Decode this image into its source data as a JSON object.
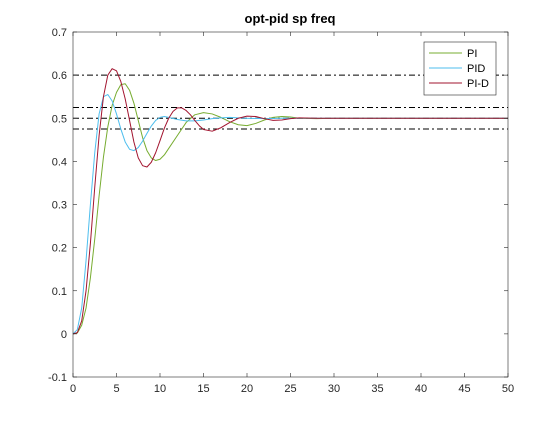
{
  "chart_data": {
    "type": "line",
    "title": "opt-pid sp freq",
    "xlabel": "",
    "ylabel": "",
    "xlim": [
      0,
      50
    ],
    "ylim": [
      -0.1,
      0.7
    ],
    "xticks": [
      0,
      5,
      10,
      15,
      20,
      25,
      30,
      35,
      40,
      45,
      50
    ],
    "yticks": [
      -0.1,
      0,
      0.1,
      0.2,
      0.3,
      0.4,
      0.5,
      0.6,
      0.7
    ],
    "xtick_labels": [
      "0",
      "5",
      "10",
      "15",
      "20",
      "25",
      "30",
      "35",
      "40",
      "45",
      "50"
    ],
    "ytick_labels": [
      "-0.1",
      "0",
      "0.1",
      "0.2",
      "0.3",
      "0.4",
      "0.5",
      "0.6",
      "0.7"
    ],
    "grid": false,
    "legend_position": "top-right",
    "reference_lines": [
      0.6,
      0.525,
      0.5,
      0.475
    ],
    "reference_line_color": "#000000",
    "series": [
      {
        "name": "PI",
        "color": "#77AC30",
        "x": [
          0,
          0.5,
          1,
          1.5,
          2,
          2.5,
          3,
          3.5,
          4,
          4.5,
          5,
          5.5,
          6,
          6.5,
          7,
          7.5,
          8,
          8.5,
          9,
          9.5,
          10,
          10.5,
          11,
          12,
          13,
          14,
          15,
          16,
          17,
          18,
          19,
          20,
          21,
          22,
          23,
          24,
          25,
          26,
          28,
          30,
          35,
          40,
          45,
          50
        ],
        "y": [
          0,
          0.002,
          0.02,
          0.06,
          0.13,
          0.22,
          0.32,
          0.41,
          0.48,
          0.53,
          0.56,
          0.578,
          0.58,
          0.565,
          0.535,
          0.495,
          0.455,
          0.425,
          0.408,
          0.402,
          0.405,
          0.415,
          0.43,
          0.46,
          0.49,
          0.508,
          0.513,
          0.51,
          0.502,
          0.492,
          0.485,
          0.483,
          0.488,
          0.496,
          0.502,
          0.504,
          0.503,
          0.5,
          0.499,
          0.5,
          0.5,
          0.5,
          0.5,
          0.5
        ]
      },
      {
        "name": "PID",
        "color": "#4DBEEE",
        "x": [
          0,
          0.5,
          1,
          1.5,
          2,
          2.5,
          3,
          3.5,
          4,
          4.5,
          5,
          5.5,
          6,
          6.5,
          7,
          7.5,
          8,
          8.5,
          9,
          9.5,
          10,
          10.5,
          11,
          12,
          13,
          14,
          15,
          16,
          17,
          18,
          19,
          20,
          22,
          24,
          26,
          30,
          35,
          40,
          45,
          50
        ],
        "y": [
          0,
          0.01,
          0.06,
          0.17,
          0.3,
          0.42,
          0.51,
          0.55,
          0.555,
          0.54,
          0.51,
          0.475,
          0.445,
          0.428,
          0.425,
          0.432,
          0.447,
          0.465,
          0.482,
          0.495,
          0.502,
          0.504,
          0.502,
          0.497,
          0.494,
          0.494,
          0.496,
          0.499,
          0.501,
          0.502,
          0.501,
          0.5,
          0.499,
          0.5,
          0.5,
          0.5,
          0.5,
          0.5,
          0.5,
          0.5
        ]
      },
      {
        "name": "PI-D",
        "color": "#A2142F",
        "x": [
          0,
          0.5,
          1,
          1.5,
          2,
          2.5,
          3,
          3.5,
          4,
          4.5,
          5,
          5.5,
          6,
          6.5,
          7,
          7.5,
          8,
          8.5,
          9,
          9.5,
          10,
          10.5,
          11,
          11.5,
          12,
          12.5,
          13,
          13.5,
          14,
          14.5,
          15,
          16,
          17,
          18,
          19,
          20,
          21,
          22,
          23,
          24,
          25,
          26,
          28,
          30,
          35,
          40,
          45,
          50
        ],
        "y": [
          0,
          0.003,
          0.03,
          0.1,
          0.21,
          0.34,
          0.46,
          0.55,
          0.6,
          0.615,
          0.61,
          0.585,
          0.545,
          0.495,
          0.445,
          0.408,
          0.39,
          0.387,
          0.398,
          0.42,
          0.448,
          0.477,
          0.5,
          0.516,
          0.524,
          0.524,
          0.518,
          0.508,
          0.495,
          0.483,
          0.474,
          0.47,
          0.478,
          0.49,
          0.5,
          0.505,
          0.504,
          0.499,
          0.495,
          0.496,
          0.499,
          0.501,
          0.5,
          0.5,
          0.5,
          0.5,
          0.5,
          0.5
        ]
      }
    ]
  }
}
